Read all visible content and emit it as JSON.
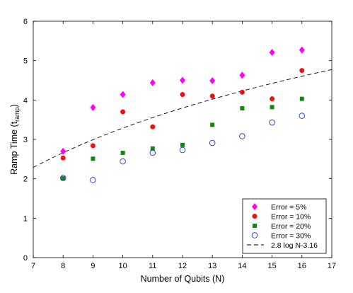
{
  "chart_data": {
    "type": "scatter",
    "xlabel": "Number of Qubits  (N)",
    "ylabel": "Ramp Time  (t",
    "ylabel_sub": "ramp",
    "ylabel_close": ")",
    "xlim": [
      7,
      17
    ],
    "ylim": [
      0,
      6
    ],
    "xticks": [
      7,
      8,
      9,
      10,
      11,
      12,
      13,
      14,
      15,
      16,
      17
    ],
    "yticks": [
      0,
      1,
      2,
      3,
      4,
      5,
      6
    ],
    "grid": false,
    "legend_position": "bottom-right",
    "series": [
      {
        "name": "Error = 5%",
        "marker": "diamond",
        "color": "#ff00ff",
        "x": [
          8,
          9,
          10,
          11,
          12,
          13,
          14,
          15,
          16
        ],
        "y": [
          2.7,
          3.81,
          4.14,
          4.44,
          4.5,
          4.49,
          4.63,
          5.21,
          5.27
        ]
      },
      {
        "name": "Error = 10%",
        "marker": "circle",
        "color": "#ee1111",
        "x": [
          8,
          9,
          10,
          11,
          12,
          13,
          14,
          15,
          16
        ],
        "y": [
          2.53,
          2.84,
          3.7,
          3.32,
          4.14,
          4.1,
          4.2,
          4.03,
          4.75
        ]
      },
      {
        "name": "Error = 20%",
        "marker": "square",
        "color": "#118811",
        "x": [
          8,
          9,
          10,
          11,
          12,
          13,
          14,
          15,
          16
        ],
        "y": [
          2.01,
          2.51,
          2.66,
          2.77,
          2.86,
          3.37,
          3.79,
          3.82,
          4.03
        ]
      },
      {
        "name": "Error = 30%",
        "marker": "open-circle",
        "color": "#2233cc",
        "x": [
          8,
          9,
          10,
          11,
          12,
          13,
          14,
          15,
          16
        ],
        "y": [
          2.02,
          1.97,
          2.44,
          2.66,
          2.73,
          2.91,
          3.08,
          3.43,
          3.6
        ]
      }
    ],
    "fit": {
      "name": "2.8 log N-3.16",
      "a": 2.8,
      "b": -3.16,
      "color": "#000000",
      "style": "dashed"
    }
  }
}
